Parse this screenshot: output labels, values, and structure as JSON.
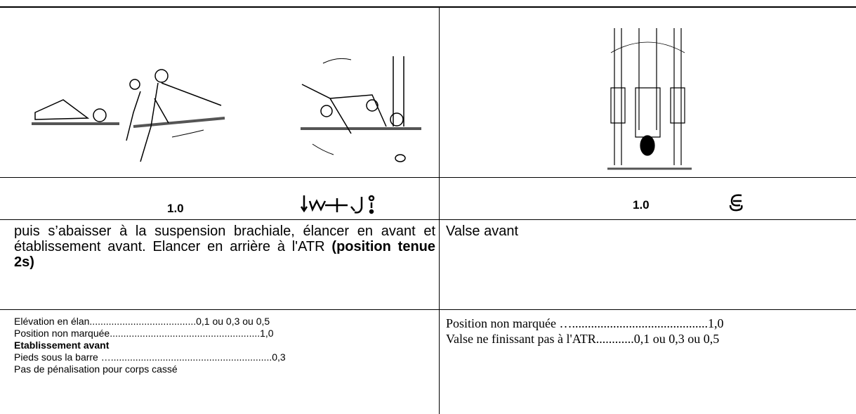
{
  "left": {
    "score": "1.0",
    "description": " puis s’abaisser à la suspension brachiale, élancer en avant et établissement avant. Elancer en arrière à l'ATR ",
    "description_bold": "(position tenue 2s)",
    "penalties": [
      "Elévation en élan.......................................0,1 ou 0,3 ou 0,5",
      "Position non marquée.......................................................1,0",
      "Etablissement avant",
      "Pieds sous la barre …...........................................................0,3",
      "Pas de pénalisation pour corps cassé"
    ]
  },
  "right": {
    "score": "1.0",
    "description": "Valse avant",
    "penalties": [
      "Position non marquée …...........................................1,0",
      "Valse ne finissant pas à l'ATR............0,1 ou 0,3 ou 0,5"
    ]
  }
}
